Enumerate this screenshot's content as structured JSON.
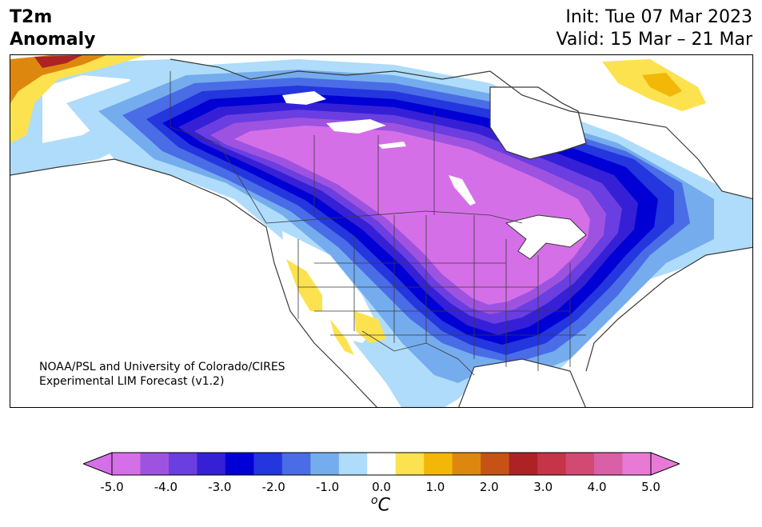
{
  "header": {
    "variable": "T2m",
    "kind": "Anomaly",
    "init": "Init: Tue 07 Mar 2023",
    "valid": "Valid: 15 Mar – 21 Mar"
  },
  "credit": {
    "line1": "NOAA/PSL and University of Colorado/CIRES",
    "line2": "Experimental LIM Forecast (v1.2)"
  },
  "colorbar": {
    "units_base": "C",
    "units_sup": "o",
    "ticks": [
      "-5.0",
      "-4.0",
      "-3.0",
      "-2.0",
      "-1.0",
      "0.0",
      "1.0",
      "2.0",
      "3.0",
      "4.0",
      "5.0"
    ],
    "levels": [
      -5.0,
      -4.5,
      -4.0,
      -3.5,
      -3.0,
      -2.5,
      -2.0,
      -1.5,
      -1.0,
      -0.5,
      0.5,
      1.0,
      1.5,
      2.0,
      2.5,
      3.0,
      3.5,
      4.0,
      4.5,
      5.0
    ],
    "colors": [
      "#d56fe8",
      "#9e53e0",
      "#6a3ee0",
      "#3520d6",
      "#0000d4",
      "#2436de",
      "#4a6ce6",
      "#74acee",
      "#aedcfa",
      "#ffffff",
      "#fde24f",
      "#f2b707",
      "#de870f",
      "#c65314",
      "#ad2225",
      "#c53448",
      "#d24a74",
      "#db5fa6",
      "#e87ad6"
    ],
    "under_color": "#d56fe8",
    "over_color": "#e87ad6"
  },
  "map": {
    "region": "North America",
    "colors": {
      "magenta": "#d56fe8",
      "purple1": "#9e53e0",
      "purple2": "#6a3ee0",
      "indigo": "#3520d6",
      "blue_dark": "#0000d4",
      "blue1": "#2436de",
      "blue2": "#4a6ce6",
      "blue3": "#74acee",
      "blue4": "#aedcfa",
      "yellow": "#fde24f",
      "gold": "#f2b707",
      "orange": "#de870f",
      "red": "#ad2225"
    }
  }
}
